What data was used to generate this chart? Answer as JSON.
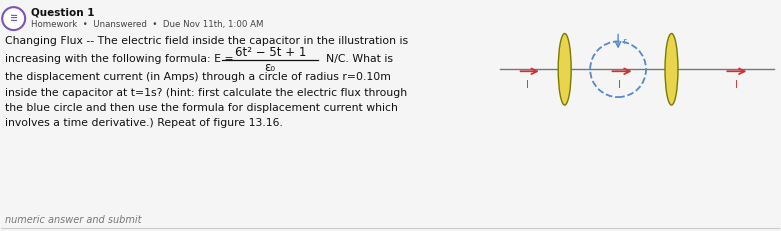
{
  "bg_color": "#f5f5f5",
  "title_text": "Question 1",
  "header_text": "Homework  •  Unanswered  •  Due Nov 11th, 1:00 AM",
  "question_line1": "Changing Flux -- The electric field inside the capacitor in the illustration is",
  "question_line2": "increasing with the following formula: E =",
  "formula_numerator": "6t² − 5t + 1",
  "formula_denominator": "ε₀",
  "formula_suffix": "N/C. What is",
  "question_line3": "the displacement current (in Amps) through a circle of radius r=0.10m",
  "question_line4": "inside the capacitor at t=1s? (hint: first calculate the electric flux through",
  "question_line5": "the blue circle and then use the formula for displacement current which",
  "question_line6": "involves a time derivative.) Repeat of figure 13.16.",
  "footer_text": "numeric answer and submit",
  "capacitor_color": "#e8d44d",
  "capacitor_edge": "#7a7a00",
  "wire_color": "#777777",
  "arrow_color": "#cc3333",
  "circle_color": "#5588cc",
  "icon_color": "#7755bb",
  "text_color": "#111111",
  "header_color": "#444444",
  "footer_color": "#777777"
}
